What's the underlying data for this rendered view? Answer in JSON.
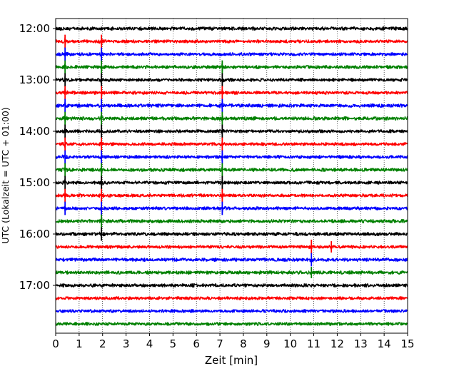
{
  "chart_data": {
    "type": "line",
    "title": "",
    "xlabel": "Zeit  [min]",
    "ylabel": "UTC (Lokalzeit = UTC + 01:00)",
    "xlim": [
      0,
      15
    ],
    "x_ticks": [
      "0",
      "1",
      "2",
      "3",
      "4",
      "5",
      "6",
      "7",
      "8",
      "9",
      "10",
      "11",
      "12",
      "13",
      "14",
      "15"
    ],
    "y_tick_labels": [
      "12:00",
      "13:00",
      "14:00",
      "15:00",
      "16:00",
      "17:00"
    ],
    "grid": "vertical dotted lines at each minute",
    "trace_colors": [
      "#000000",
      "#ff0000",
      "#0000ff",
      "#008000"
    ],
    "series": [
      {
        "start": "12:00",
        "color": "#000000",
        "amplitude": 0.8,
        "events": [
          {
            "x": 2.6,
            "amp": 0.6
          }
        ]
      },
      {
        "start": "12:15",
        "color": "#ff0000",
        "amplitude": 0.75,
        "events": [
          {
            "x": 0.4,
            "amp": 2.6
          },
          {
            "x": 1.95,
            "amp": 2.6
          }
        ]
      },
      {
        "start": "12:30",
        "color": "#0000ff",
        "amplitude": 0.75,
        "events": [
          {
            "x": 0.4,
            "amp": 2.6
          },
          {
            "x": 1.95,
            "amp": 2.6
          },
          {
            "x": 10.1,
            "amp": 0.6
          }
        ]
      },
      {
        "start": "12:45",
        "color": "#008000",
        "amplitude": 0.8,
        "events": [
          {
            "x": 0.4,
            "amp": 2.6
          },
          {
            "x": 1.95,
            "amp": 2.6
          },
          {
            "x": 7.1,
            "amp": 2.6
          },
          {
            "x": 8.1,
            "amp": 0.8
          }
        ]
      },
      {
        "start": "13:00",
        "color": "#000000",
        "amplitude": 0.75,
        "events": [
          {
            "x": 0.4,
            "amp": 2.6
          },
          {
            "x": 1.95,
            "amp": 2.6
          },
          {
            "x": 7.1,
            "amp": 2.6
          },
          {
            "x": 10.9,
            "amp": 0.6
          }
        ]
      },
      {
        "start": "13:15",
        "color": "#ff0000",
        "amplitude": 0.75,
        "events": [
          {
            "x": 0.4,
            "amp": 2.6
          },
          {
            "x": 1.95,
            "amp": 2.6
          },
          {
            "x": 5.6,
            "amp": 0.6
          },
          {
            "x": 7.1,
            "amp": 2.6
          }
        ]
      },
      {
        "start": "13:30",
        "color": "#0000ff",
        "amplitude": 0.8,
        "events": [
          {
            "x": 0.4,
            "amp": 2.6
          },
          {
            "x": 1.95,
            "amp": 2.6
          },
          {
            "x": 7.1,
            "amp": 2.6
          },
          {
            "x": 8.7,
            "amp": 0.8
          }
        ]
      },
      {
        "start": "13:45",
        "color": "#008000",
        "amplitude": 0.8,
        "events": [
          {
            "x": 0.4,
            "amp": 2.6
          },
          {
            "x": 1.95,
            "amp": 2.6
          },
          {
            "x": 7.1,
            "amp": 2.6
          }
        ]
      },
      {
        "start": "14:00",
        "color": "#000000",
        "amplitude": 0.75,
        "events": [
          {
            "x": 0.4,
            "amp": 2.6
          },
          {
            "x": 1.95,
            "amp": 2.6
          },
          {
            "x": 4.6,
            "amp": 0.5
          },
          {
            "x": 7.1,
            "amp": 2.6
          },
          {
            "x": 9.1,
            "amp": 0.6
          }
        ]
      },
      {
        "start": "14:15",
        "color": "#ff0000",
        "amplitude": 0.75,
        "events": [
          {
            "x": 0.4,
            "amp": 2.6
          },
          {
            "x": 1.95,
            "amp": 2.6
          },
          {
            "x": 7.1,
            "amp": 2.6
          }
        ]
      },
      {
        "start": "14:30",
        "color": "#0000ff",
        "amplitude": 0.75,
        "events": [
          {
            "x": 0.4,
            "amp": 2.6
          },
          {
            "x": 1.95,
            "amp": 2.6
          },
          {
            "x": 7.1,
            "amp": 2.6
          }
        ]
      },
      {
        "start": "14:45",
        "color": "#008000",
        "amplitude": 0.8,
        "events": [
          {
            "x": 0.4,
            "amp": 2.6
          },
          {
            "x": 1.95,
            "amp": 2.6
          },
          {
            "x": 7.1,
            "amp": 2.6
          }
        ]
      },
      {
        "start": "15:00",
        "color": "#000000",
        "amplitude": 0.75,
        "events": [
          {
            "x": 0.4,
            "amp": 2.6
          },
          {
            "x": 1.95,
            "amp": 2.6
          },
          {
            "x": 7.1,
            "amp": 2.6
          }
        ]
      },
      {
        "start": "15:15",
        "color": "#ff0000",
        "amplitude": 0.75,
        "events": [
          {
            "x": 0.4,
            "amp": 2.6
          },
          {
            "x": 1.95,
            "amp": 2.6
          },
          {
            "x": 7.1,
            "amp": 2.6
          }
        ]
      },
      {
        "start": "15:30",
        "color": "#0000ff",
        "amplitude": 0.75,
        "events": [
          {
            "x": 0.4,
            "amp": 2.6
          },
          {
            "x": 1.95,
            "amp": 2.6
          },
          {
            "x": 7.1,
            "amp": 2.6
          }
        ]
      },
      {
        "start": "15:45",
        "color": "#008000",
        "amplitude": 0.8,
        "events": [
          {
            "x": 1.95,
            "amp": 2.6
          },
          {
            "x": 5.9,
            "amp": 0.6
          }
        ]
      },
      {
        "start": "16:00",
        "color": "#000000",
        "amplitude": 0.8,
        "events": [
          {
            "x": 1.95,
            "amp": 2.6
          },
          {
            "x": 14.0,
            "amp": 0.8
          },
          {
            "x": 14.9,
            "amp": 0.7
          }
        ]
      },
      {
        "start": "16:15",
        "color": "#ff0000",
        "amplitude": 0.75,
        "events": [
          {
            "x": 10.9,
            "amp": 2.8
          },
          {
            "x": 11.3,
            "amp": 1.2
          },
          {
            "x": 11.75,
            "amp": 2.2
          }
        ]
      },
      {
        "start": "16:30",
        "color": "#0000ff",
        "amplitude": 0.8,
        "events": [
          {
            "x": 10.9,
            "amp": 2.6
          }
        ]
      },
      {
        "start": "16:45",
        "color": "#008000",
        "amplitude": 0.8,
        "events": [
          {
            "x": 10.9,
            "amp": 2.2
          },
          {
            "x": 9.1,
            "amp": 0.6
          }
        ]
      },
      {
        "start": "17:00",
        "color": "#000000",
        "amplitude": 0.8,
        "events": [
          {
            "x": 10.9,
            "amp": 1.0
          }
        ]
      },
      {
        "start": "17:15",
        "color": "#ff0000",
        "amplitude": 0.75,
        "events": [
          {
            "x": 2.0,
            "amp": 0.6
          },
          {
            "x": 13.6,
            "amp": 0.5
          }
        ]
      },
      {
        "start": "17:30",
        "color": "#0000ff",
        "amplitude": 0.75,
        "events": [
          {
            "x": 2.4,
            "amp": 0.6
          },
          {
            "x": 13.6,
            "amp": 0.5
          }
        ]
      },
      {
        "start": "17:45",
        "color": "#008000",
        "amplitude": 0.75,
        "events": [
          {
            "x": 7.1,
            "amp": 0.7
          },
          {
            "x": 14.9,
            "amp": 0.6
          }
        ]
      }
    ]
  }
}
